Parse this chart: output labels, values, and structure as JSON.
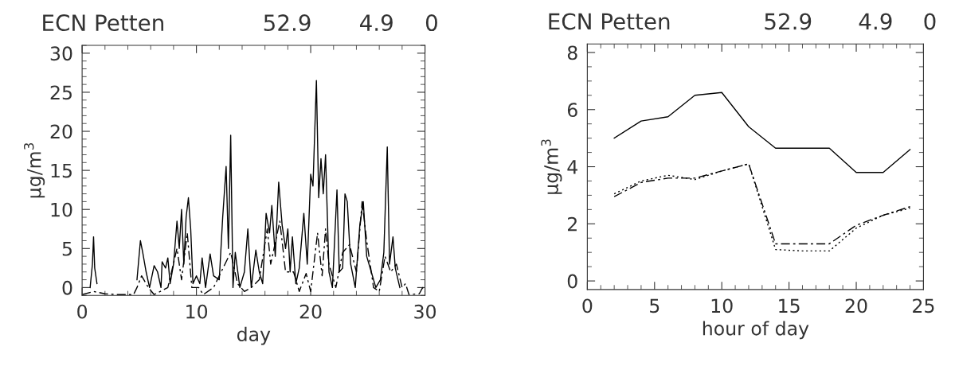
{
  "chart_data": [
    {
      "type": "line",
      "title": "ECN Petten",
      "annotations": [
        "52.9",
        "4.9",
        "0"
      ],
      "xlabel": "day",
      "ylabel": "µg/m$^{3}$",
      "xlim": [
        0,
        30
      ],
      "ylim": [
        -1,
        31
      ],
      "xticks": [
        0,
        10,
        20,
        30
      ],
      "yticks": [
        0,
        5,
        10,
        15,
        20,
        25,
        30
      ],
      "marker": "none",
      "series": [
        {
          "color": "#000000",
          "line_style": "solid",
          "x": [
            0.7,
            0.9,
            1.0,
            1.1,
            1.3,
            1.4,
            4.8,
            5.1,
            5.3,
            5.6,
            5.9,
            6.3,
            6.6,
            6.9,
            7.0,
            7.3,
            7.5,
            7.7,
            8.0,
            8.3,
            8.5,
            8.7,
            8.9,
            9.1,
            9.3,
            9.5,
            9.7,
            10.0,
            10.3,
            10.5,
            10.8,
            11.2,
            11.5,
            12.0,
            12.3,
            12.6,
            12.8,
            13.0,
            13.2,
            13.4,
            13.8,
            14.2,
            14.5,
            14.8,
            15.2,
            15.5,
            15.8,
            16.1,
            16.4,
            16.6,
            16.9,
            17.2,
            17.5,
            17.8,
            18.0,
            18.2,
            18.4,
            18.7,
            19.0,
            19.4,
            19.7,
            20.0,
            20.2,
            20.5,
            20.7,
            20.9,
            21.1,
            21.3,
            21.6,
            21.9,
            22.3,
            22.5,
            22.8,
            23.0,
            23.2,
            23.5,
            23.9,
            24.3,
            24.6,
            24.9,
            25.3,
            25.7,
            26.1,
            26.4,
            26.7,
            26.9,
            27.2,
            27.4,
            27.8
          ],
          "values": [
            0,
            3,
            6.5,
            2.5,
            0.5,
            null,
            1,
            6,
            4.5,
            2,
            0,
            2.8,
            2,
            0,
            3.3,
            2.5,
            3.8,
            0.5,
            3,
            8.5,
            5,
            10,
            3,
            9,
            11.5,
            7.5,
            0.5,
            1.5,
            0.5,
            3.8,
            0,
            4.3,
            1.5,
            1,
            9,
            15.5,
            5,
            19.5,
            0,
            4.5,
            0,
            2,
            7.5,
            0,
            4.8,
            2,
            0.5,
            9.5,
            7,
            10.5,
            4,
            13.5,
            8,
            5,
            7.5,
            2,
            6.5,
            0.5,
            2.5,
            9.5,
            3,
            14.5,
            13,
            26.5,
            11.5,
            16.5,
            12,
            17,
            2,
            0,
            12.5,
            2,
            2.5,
            12,
            11,
            3,
            0,
            8,
            11,
            4,
            2,
            0,
            1,
            4.5,
            18,
            3,
            6.5,
            2.5,
            0
          ]
        },
        {
          "color": "#000000",
          "line_style": "dashed",
          "x": [
            0,
            1.0,
            2,
            3,
            4.5,
            4.8,
            5.2,
            5.8,
            6.3,
            7.5,
            8.3,
            8.7,
            9.2,
            9.6,
            10.2,
            10.6,
            11.5,
            12.5,
            13.0,
            13.6,
            14.2,
            14.8,
            15.5,
            16.2,
            16.5,
            17.3,
            17.8,
            18.5,
            19.0,
            19.6,
            20.0,
            20.6,
            21.0,
            21.3,
            21.6,
            22.2,
            22.8,
            23.4,
            24.0,
            24.5,
            24.9,
            25.5,
            26.0,
            26.5,
            27.0,
            27.5,
            28.0,
            28.3,
            28.6,
            29.5,
            29.8,
            30
          ],
          "values": [
            -0.9,
            -0.5,
            -0.8,
            -0.9,
            -0.9,
            0,
            1.5,
            0,
            -0.9,
            0,
            5,
            1,
            7,
            0,
            0,
            -0.9,
            0,
            3,
            4.5,
            0.5,
            -0.5,
            0,
            1,
            7.5,
            3,
            8.5,
            2,
            2,
            -0.5,
            1.8,
            -0.5,
            7,
            1.5,
            7.5,
            3,
            0,
            4.5,
            5.5,
            2,
            11,
            6,
            0,
            -0.5,
            4,
            2,
            3,
            0,
            0.5,
            -0.9,
            -0.8,
            0,
            -0.5
          ]
        }
      ]
    },
    {
      "type": "line",
      "title": "ECN Petten",
      "annotations": [
        "52.9",
        "4.9",
        "0"
      ],
      "xlabel": "hour of day",
      "ylabel": "µg/m$^{3}$",
      "xlim": [
        0,
        25
      ],
      "ylim": [
        -0.3,
        8.3
      ],
      "xticks": [
        0,
        5,
        10,
        15,
        20,
        25
      ],
      "yticks": [
        0,
        2,
        4,
        6,
        8
      ],
      "marker": "none",
      "x": [
        2,
        4,
        6,
        8,
        10,
        12,
        14,
        16,
        18,
        20,
        22,
        24
      ],
      "series": [
        {
          "color": "#000000",
          "line_style": "solid",
          "values": [
            5.0,
            5.6,
            5.75,
            6.5,
            6.6,
            5.4,
            4.65,
            4.65,
            4.65,
            3.8,
            3.8,
            4.6
          ]
        },
        {
          "color": "#000000",
          "line_style": "dashed",
          "values": [
            2.95,
            3.45,
            3.6,
            3.6,
            3.85,
            4.1,
            1.3,
            1.3,
            1.3,
            1.95,
            2.3,
            2.6
          ]
        },
        {
          "color": "#000000",
          "line_style": "dotted",
          "values": [
            3.05,
            3.5,
            3.7,
            3.55,
            3.85,
            4.1,
            1.1,
            1.05,
            1.05,
            1.85,
            2.3,
            2.55
          ]
        }
      ]
    }
  ]
}
